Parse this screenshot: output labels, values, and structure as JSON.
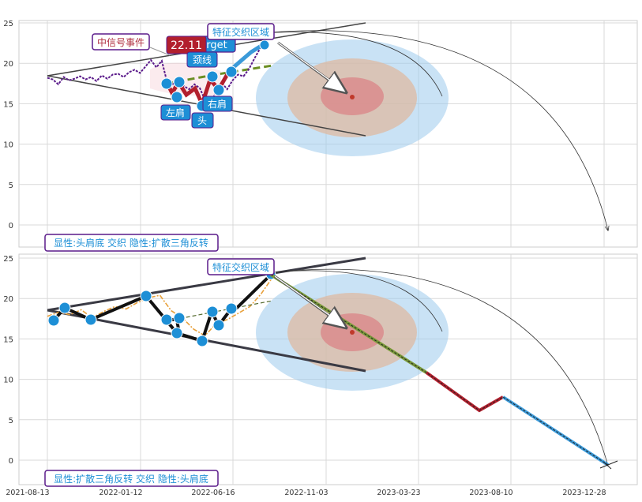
{
  "chart_data": [
    {
      "type": "line",
      "panel": "top",
      "ylim": [
        -2.5,
        25.3
      ],
      "yticks": [
        0,
        5,
        10,
        15,
        20,
        25
      ],
      "series": [
        {
          "name": "",
          "style": "purple dotted line",
          "x": [
            0,
            2,
            4,
            6,
            8,
            10,
            12,
            14,
            16,
            18,
            20,
            22,
            24,
            26,
            28,
            30,
            32,
            34,
            36,
            38,
            40,
            42,
            44,
            46,
            48,
            50,
            52,
            54,
            56,
            58,
            60,
            62,
            64,
            66,
            68,
            70,
            72,
            74,
            76,
            78,
            80
          ],
          "y": [
            18.2,
            18.0,
            17.4,
            18.3,
            17.9,
            18.1,
            18.4,
            18.0,
            18.3,
            17.8,
            18.5,
            18.1,
            18.6,
            18.7,
            18.3,
            18.9,
            19.2,
            18.8,
            19.6,
            20.4,
            19.5,
            20.3,
            17.6,
            17.4,
            18.0,
            17.2,
            16.8,
            17.4,
            16.9,
            15.3,
            14.9,
            16.7,
            17.6,
            16.8,
            17.9,
            18.6,
            18.4,
            19.3,
            20.6,
            21.8,
            22.7
          ]
        },
        {
          "name": "",
          "style": "thick red pattern segments",
          "x": [
            28,
            33,
            37,
            41,
            45,
            49,
            53,
            56
          ],
          "y": [
            17.2,
            17.5,
            15.3,
            17.6,
            14.8,
            18.4,
            16.6,
            18.8
          ]
        },
        {
          "name": "",
          "style": "green dashed neckline",
          "x": [
            28,
            56,
            66
          ],
          "y": [
            16.8,
            19.2,
            19.8
          ]
        }
      ],
      "pattern_points": {
        "x": [
          28,
          31,
          33,
          37,
          41,
          45,
          49,
          53,
          56
        ],
        "y": [
          17.4,
          15.6,
          17.6,
          15.3,
          17.6,
          14.8,
          18.4,
          16.7,
          18.8
        ]
      },
      "annotations": [
        {
          "text": "中信号事件",
          "color": "#b03040"
        },
        {
          "text": "22.11",
          "color": "#b03040"
        },
        {
          "text": "target",
          "color": "#1d8fd6"
        },
        {
          "text": "颈线",
          "color": "#1d8fd6"
        },
        {
          "text": "左肩",
          "color": "#1d8fd6"
        },
        {
          "text": "头",
          "color": "#1d8fd6"
        },
        {
          "text": "右肩",
          "color": "#1d8fd6"
        },
        {
          "text": "特征交织区域",
          "color": "#1d8fd6"
        }
      ],
      "footer": "显性:头肩底 交织 隐性:扩散三角反转",
      "grid": true
    },
    {
      "type": "line",
      "panel": "bottom",
      "ylim": [
        -2.5,
        25.3
      ],
      "yticks": [
        0,
        5,
        10,
        15,
        20,
        25
      ],
      "x_ticklabels": [
        "2021-08-13",
        "2022-01-12",
        "2022-06-16",
        "2022-11-03",
        "2023-03-23",
        "2023-08-10",
        "2023-12-28"
      ],
      "series": [
        {
          "name": "",
          "style": "orange dash-dot price",
          "x": [
            0,
            4,
            8,
            12,
            16,
            20,
            24,
            28,
            32,
            36,
            40,
            44,
            48,
            52,
            56,
            60,
            64,
            68,
            72,
            76,
            80
          ],
          "y": [
            17.8,
            18.3,
            18.0,
            18.6,
            17.6,
            18.4,
            19.0,
            18.7,
            19.5,
            20.1,
            20.4,
            18.5,
            17.6,
            16.2,
            15.4,
            16.9,
            17.4,
            18.2,
            19.0,
            20.6,
            22.6
          ]
        },
        {
          "name": "",
          "style": "black zigzag",
          "x": [
            4,
            11,
            25,
            41,
            53,
            65,
            70,
            73,
            76,
            78,
            81,
            83,
            88
          ],
          "y": [
            17.2,
            18.8,
            17.4,
            20.3,
            17.3,
            15.6,
            17.5,
            14.8,
            18.3,
            16.6,
            18.6,
            19.2,
            23.0
          ]
        },
        {
          "name": "",
          "style": "projection",
          "x": [
            88,
            140,
            163,
            178,
            220
          ],
          "y": [
            22.8,
            13.0,
            6.2,
            7.8,
            -0.6
          ]
        }
      ],
      "annotations": [
        {
          "text": "特征交织区域",
          "color": "#1d8fd6"
        }
      ],
      "footer": "显性:扩散三角反转 交织 隐性:头肩底",
      "grid": true
    }
  ]
}
